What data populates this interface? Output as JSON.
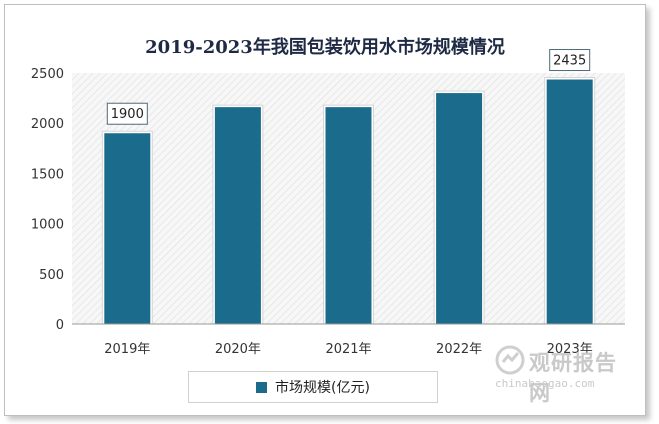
{
  "chart_data": {
    "type": "bar",
    "title": "2019-2023年我国包装饮用水市场规模情况",
    "categories": [
      "2019年",
      "2020年",
      "2021年",
      "2022年",
      "2023年"
    ],
    "series": [
      {
        "name": "市场规模(亿元)",
        "values": [
          1900,
          2160,
          2160,
          2300,
          2435
        ],
        "color": "#1b6b8c"
      }
    ],
    "data_labels": [
      "1900",
      "",
      "",
      "",
      "2435"
    ],
    "ylim": [
      0,
      2500
    ],
    "yticks": [
      0,
      500,
      1000,
      1500,
      2000,
      2500
    ],
    "grid": false,
    "plot_background": "hatched light gray",
    "legend": "bottom"
  },
  "watermark": {
    "brand": "观研报告网",
    "domain": "chinabaogao.com",
    "color": "#c9c9c9"
  }
}
